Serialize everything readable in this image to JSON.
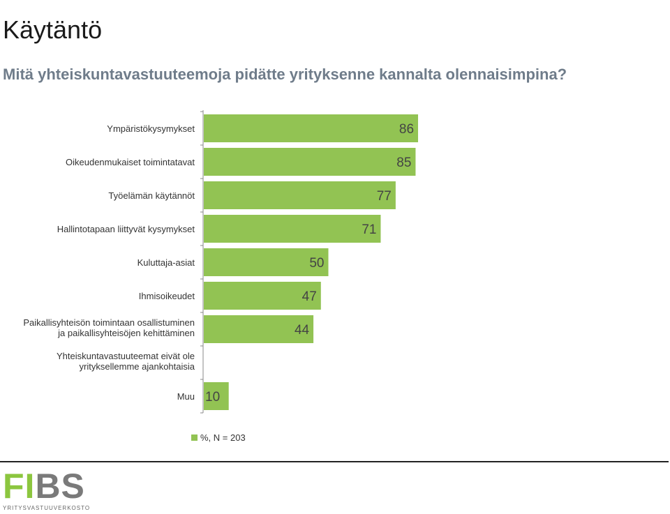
{
  "page": {
    "title": "Käytäntö",
    "subtitle": "Mitä yhteiskuntavastuuteemoja pidätte yrityksenne kannalta olennaisimpina?"
  },
  "chart_data": {
    "type": "bar",
    "orientation": "horizontal",
    "categories": [
      [
        "Ympäristökysymykset"
      ],
      [
        "Oikeudenmukaiset toimintatavat"
      ],
      [
        "Työelämän käytännöt"
      ],
      [
        "Hallintotapaan liittyvät kysymykset"
      ],
      [
        "Kuluttaja-asiat"
      ],
      [
        "Ihmisoikeudet"
      ],
      [
        "Paikallisyhteisön toimintaan osallistuminen",
        "ja paikallisyhteisöjen kehittäminen"
      ],
      [
        "Yhteiskuntavastuuteemat eivät ole",
        "yrityksellemme ajankohtaisia"
      ],
      [
        "Muu"
      ]
    ],
    "series": [
      {
        "name": "%, N = 203",
        "values": [
          86,
          85,
          77,
          71,
          50,
          47,
          44,
          null,
          10
        ],
        "labels": [
          "86",
          "85",
          "77",
          "71",
          "50",
          "47",
          "44",
          "",
          "10"
        ]
      }
    ],
    "xlim": [
      0,
      100
    ],
    "grid": false,
    "legend": "bottom-center",
    "bar_color": "#92c353"
  },
  "footer": {
    "logo_letters_green": "FI",
    "logo_letters_grey": "BS",
    "logo_tagline": "YRITYSVASTUUVERKOSTO",
    "logo_green": "#8cc63f",
    "logo_grey": "#7a7a7a"
  }
}
